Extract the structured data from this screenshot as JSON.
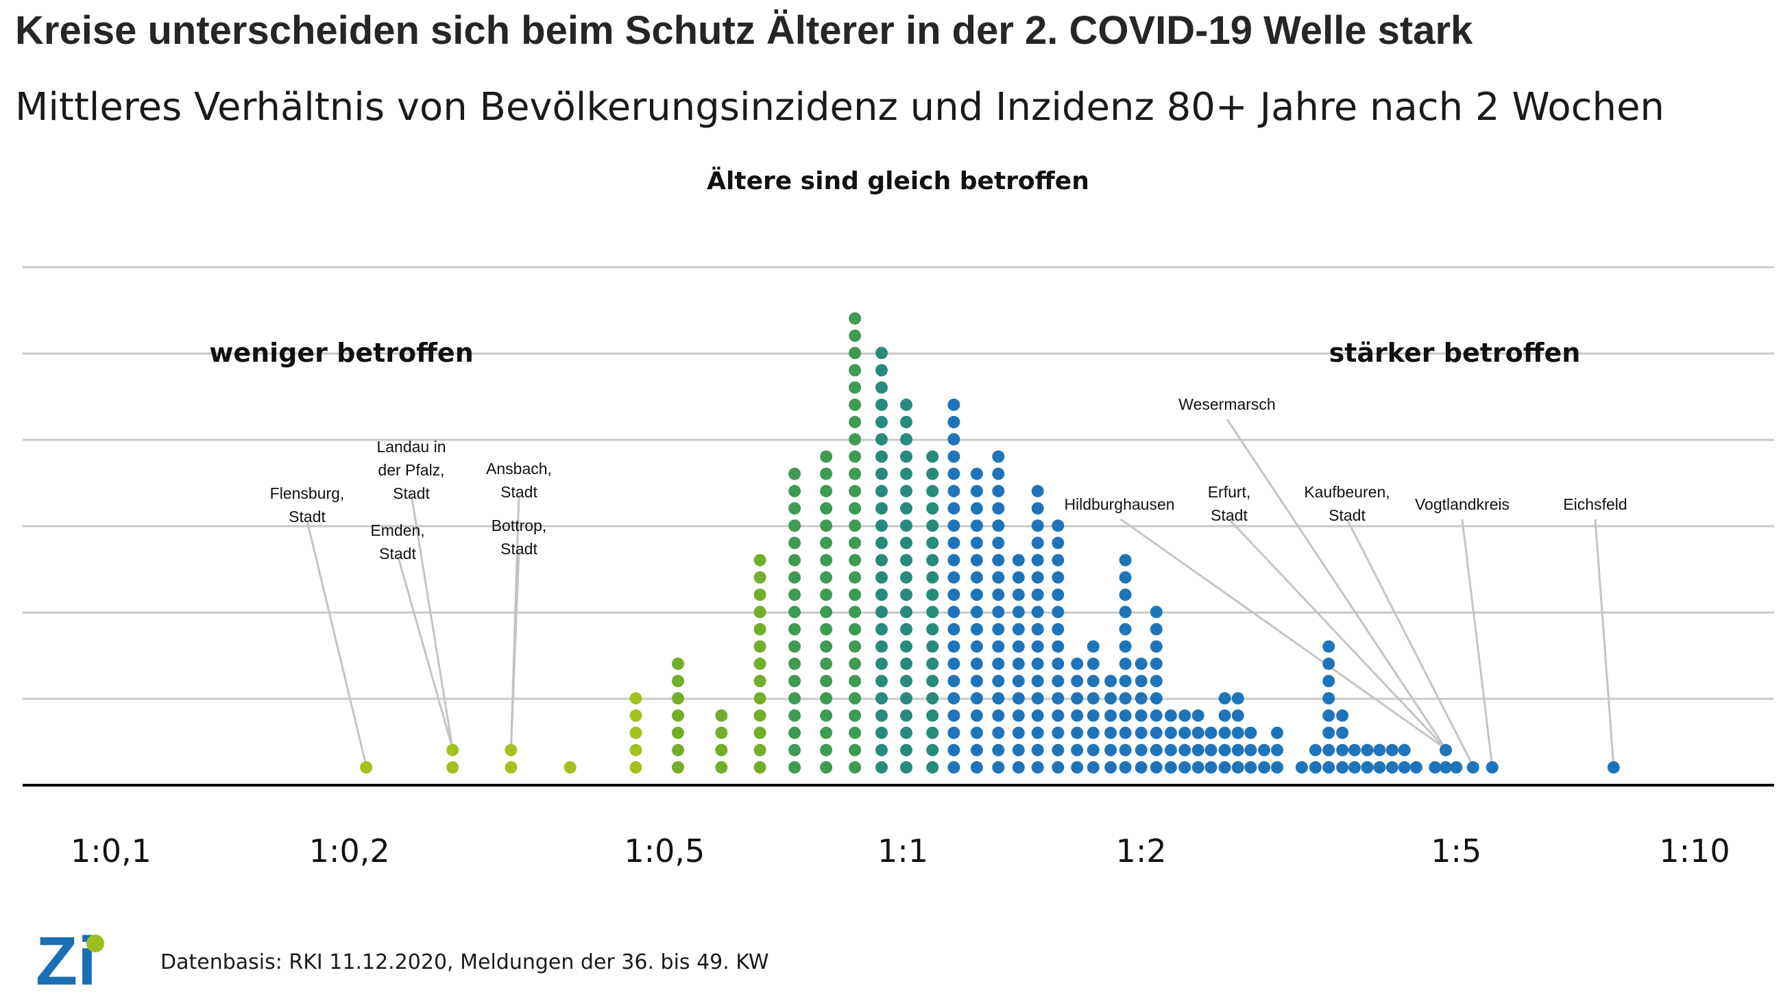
{
  "header": {
    "title": "Kreise unterscheiden sich beim Schutz Älterer in der 2. COVID-19 Welle stark",
    "subtitle": "Mittleres Verhältnis von Bevölkerungsinzidenz und Inzidenz 80+ Jahre nach 2 Wochen"
  },
  "labels": {
    "center": "Ältere sind gleich betroffen",
    "left": "weniger betroffen",
    "right": "stärker betroffen"
  },
  "footer": {
    "source": "Datenbasis: RKI 11.12.2020, Meldungen der 36. bis 49. KW"
  },
  "logo": {
    "text": "Zi",
    "color_blue": "#1a6fb5",
    "color_green": "#9bbf1f"
  },
  "colors": {
    "yellowgreen": "#a3c21f",
    "green": "#72ae2a",
    "midgreen": "#3f9a52",
    "teal": "#278a7b",
    "blue": "#1f74b9"
  },
  "chart_data": {
    "type": "scatter",
    "subtype": "dot-histogram",
    "title": "Kreise unterscheiden sich beim Schutz Älterer in der 2. COVID-19 Welle stark",
    "subtitle": "Mittleres Verhältnis von Bevölkerungsinzidenz und Inzidenz 80+ Jahre nach 2 Wochen",
    "xscale": "log",
    "xlim": [
      0.1,
      10
    ],
    "grid": "horizontal",
    "xticks": [
      {
        "label": "1:0,1",
        "value": 0.1
      },
      {
        "label": "1:0,2",
        "value": 0.2
      },
      {
        "label": "1:0,5",
        "value": 0.5
      },
      {
        "label": "1:1",
        "value": 1
      },
      {
        "label": "1:2",
        "value": 2
      },
      {
        "label": "1:5",
        "value": 5
      },
      {
        "label": "1:10",
        "value": 10
      }
    ],
    "columns": [
      {
        "x": 0.21,
        "count": 1,
        "color": "yellowgreen"
      },
      {
        "x": 0.27,
        "count": 2,
        "color": "yellowgreen"
      },
      {
        "x": 0.32,
        "count": 2,
        "color": "yellowgreen"
      },
      {
        "x": 0.38,
        "count": 1,
        "color": "yellowgreen"
      },
      {
        "x": 0.46,
        "count": 5,
        "color": "yellowgreen"
      },
      {
        "x": 0.52,
        "count": 7,
        "color": "green"
      },
      {
        "x": 0.59,
        "count": 4,
        "color": "green"
      },
      {
        "x": 0.66,
        "count": 13,
        "color": "green"
      },
      {
        "x": 0.73,
        "count": 18,
        "color": "midgreen"
      },
      {
        "x": 0.8,
        "count": 19,
        "color": "midgreen"
      },
      {
        "x": 0.87,
        "count": 27,
        "color": "midgreen"
      },
      {
        "x": 0.94,
        "count": 25,
        "color": "teal"
      },
      {
        "x": 1.01,
        "count": 22,
        "color": "teal"
      },
      {
        "x": 1.09,
        "count": 19,
        "color": "teal"
      },
      {
        "x": 1.16,
        "count": 22,
        "color": "blue"
      },
      {
        "x": 1.24,
        "count": 18,
        "color": "blue"
      },
      {
        "x": 1.32,
        "count": 19,
        "color": "blue"
      },
      {
        "x": 1.4,
        "count": 13,
        "color": "blue"
      },
      {
        "x": 1.48,
        "count": 17,
        "color": "blue"
      },
      {
        "x": 1.57,
        "count": 15,
        "color": "blue"
      },
      {
        "x": 1.66,
        "count": 7,
        "color": "blue"
      },
      {
        "x": 1.74,
        "count": 8,
        "color": "blue"
      },
      {
        "x": 1.83,
        "count": 6,
        "color": "blue"
      },
      {
        "x": 1.91,
        "count": 13,
        "color": "blue"
      },
      {
        "x": 2.0,
        "count": 7,
        "color": "blue"
      },
      {
        "x": 2.09,
        "count": 10,
        "color": "blue"
      },
      {
        "x": 2.18,
        "count": 4,
        "color": "blue"
      },
      {
        "x": 2.27,
        "count": 4,
        "color": "blue"
      },
      {
        "x": 2.36,
        "count": 4,
        "color": "blue"
      },
      {
        "x": 2.45,
        "count": 3,
        "color": "blue"
      },
      {
        "x": 2.55,
        "count": 5,
        "color": "blue"
      },
      {
        "x": 2.65,
        "count": 5,
        "color": "blue"
      },
      {
        "x": 2.75,
        "count": 3,
        "color": "blue"
      },
      {
        "x": 2.86,
        "count": 2,
        "color": "blue"
      },
      {
        "x": 2.97,
        "count": 3,
        "color": "blue"
      },
      {
        "x": 3.19,
        "count": 1,
        "color": "blue"
      },
      {
        "x": 3.32,
        "count": 2,
        "color": "blue"
      },
      {
        "x": 3.45,
        "count": 8,
        "color": "blue"
      },
      {
        "x": 3.59,
        "count": 4,
        "color": "blue"
      },
      {
        "x": 3.72,
        "count": 2,
        "color": "blue"
      },
      {
        "x": 3.86,
        "count": 2,
        "color": "blue"
      },
      {
        "x": 4.0,
        "count": 2,
        "color": "blue"
      },
      {
        "x": 4.15,
        "count": 2,
        "color": "blue"
      },
      {
        "x": 4.3,
        "count": 2,
        "color": "blue"
      },
      {
        "x": 4.45,
        "count": 1,
        "color": "blue"
      },
      {
        "x": 4.7,
        "count": 1,
        "color": "blue"
      },
      {
        "x": 4.85,
        "count": 2,
        "color": "blue"
      },
      {
        "x": 5.0,
        "count": 1,
        "color": "blue"
      },
      {
        "x": 5.25,
        "count": 1,
        "color": "blue"
      },
      {
        "x": 5.55,
        "count": 1,
        "color": "blue"
      },
      {
        "x": 7.9,
        "count": 1,
        "color": "blue"
      }
    ],
    "annotations": [
      {
        "lines": [
          "Flensburg,",
          "Stadt"
        ],
        "x": 0.21
      },
      {
        "lines": [
          "Landau in",
          "der Pfalz,",
          "Stadt"
        ],
        "x": 0.27
      },
      {
        "lines": [
          "Emden,",
          "Stadt"
        ],
        "x": 0.27
      },
      {
        "lines": [
          "Ansbach,",
          "Stadt"
        ],
        "x": 0.32
      },
      {
        "lines": [
          "Bottrop,",
          "Stadt"
        ],
        "x": 0.32
      },
      {
        "lines": [
          "Hildburghausen"
        ],
        "x": 4.85
      },
      {
        "lines": [
          "Erfurt,",
          "Stadt"
        ],
        "x": 4.85
      },
      {
        "lines": [
          "Wesermarsch"
        ],
        "x": 4.85
      },
      {
        "lines": [
          "Kaufbeuren,",
          "Stadt"
        ],
        "x": 5.25
      },
      {
        "lines": [
          "Vogtlandkreis"
        ],
        "x": 5.55
      },
      {
        "lines": [
          "Eichsfeld"
        ],
        "x": 7.9
      }
    ]
  }
}
